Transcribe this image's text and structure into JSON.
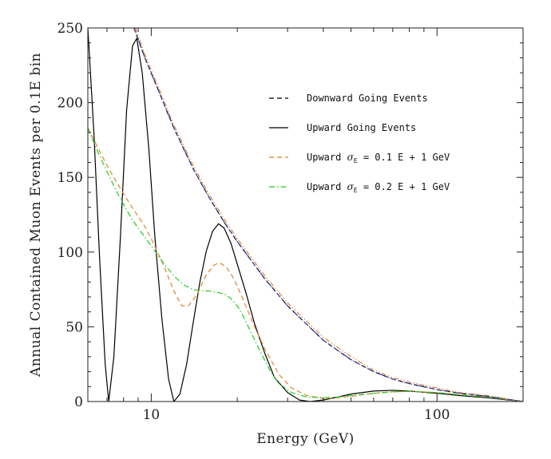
{
  "chart_data": {
    "type": "line",
    "xlabel": "Energy (GeV)",
    "ylabel": "Annual Contained Muon Events per 0.1E bin",
    "x_scale": "log",
    "xlim": [
      6,
      200
    ],
    "ylim": [
      0,
      250
    ],
    "x_ticks": [
      10,
      100
    ],
    "x_tick_labels": [
      "10",
      "100"
    ],
    "y_ticks": [
      0,
      50,
      100,
      150,
      200,
      250
    ],
    "y_tick_labels": [
      "0",
      "50",
      "100",
      "150",
      "200",
      "250"
    ],
    "grid": false,
    "legend_position": "top-right",
    "series": [
      {
        "name": "Downward Going Events",
        "style": "dashed",
        "color": "#000000",
        "x": [
          8.7,
          9.5,
          10.5,
          12,
          14,
          16,
          18,
          20,
          25,
          30,
          40,
          50,
          60,
          70,
          80,
          100,
          120,
          150,
          200
        ],
        "y": [
          250,
          230,
          210,
          183,
          156,
          136,
          120,
          107,
          82,
          64,
          41,
          28,
          20,
          15,
          12,
          8,
          5.5,
          3.5,
          0
        ]
      },
      {
        "name": "Upward Going Events",
        "style": "solid",
        "color": "#000000",
        "x": [
          6,
          6.3,
          6.6,
          6.9,
          7.1,
          7.4,
          7.8,
          8.2,
          8.6,
          8.9,
          9.3,
          9.8,
          10.3,
          10.9,
          11.5,
          12,
          12.6,
          13.3,
          14,
          14.8,
          15.6,
          16.4,
          17.2,
          18,
          19,
          20,
          21.5,
          23,
          25,
          27,
          30,
          33,
          36,
          40,
          45,
          50,
          60,
          70,
          80,
          90,
          100,
          120,
          150,
          200
        ],
        "y": [
          250,
          180,
          95,
          25,
          0,
          30,
          110,
          195,
          238,
          243,
          220,
          170,
          110,
          55,
          15,
          0,
          5,
          25,
          52,
          80,
          101,
          114,
          119,
          116,
          106,
          92,
          72,
          52,
          32,
          16,
          6,
          1,
          0,
          1,
          3,
          5,
          7,
          7.5,
          7,
          6.2,
          5.5,
          4,
          2.5,
          0
        ]
      },
      {
        "name": "Upward σE = 0.1 E + 1 GeV",
        "style": "dashed",
        "color": "#e0822a",
        "x": [
          6,
          6.5,
          7,
          7.5,
          8,
          8.5,
          9,
          9.5,
          10,
          11,
          12,
          12.8,
          13.5,
          14.5,
          15.5,
          16.5,
          17.3,
          18.3,
          19.5,
          21,
          23,
          25,
          28,
          31,
          35,
          40,
          45,
          50,
          60,
          70,
          80,
          100,
          120,
          150,
          200
        ],
        "y": [
          183,
          170,
          158,
          148,
          139,
          131,
          124,
          117,
          109,
          92,
          74,
          64,
          64,
          72,
          84,
          91,
          93,
          90,
          82,
          68,
          50,
          35,
          18,
          9,
          4,
          2,
          2.5,
          3.5,
          5.5,
          6.5,
          6.8,
          6,
          4.5,
          3,
          0
        ]
      },
      {
        "name": "Upward σE = 0.2 E + 1 GeV",
        "style": "dash-dot",
        "color": "#22cc22",
        "x": [
          6,
          6.5,
          7,
          7.5,
          8,
          8.5,
          9,
          9.5,
          10,
          11,
          12,
          13,
          14,
          15,
          16,
          17,
          18,
          19,
          20,
          21,
          22.5,
          24,
          26,
          28,
          31,
          35,
          40,
          45,
          50,
          60,
          70,
          80,
          100,
          120,
          150,
          200
        ],
        "y": [
          183,
          167,
          154,
          142,
          132,
          123,
          116,
          110,
          104,
          93,
          84,
          78,
          75,
          74,
          74,
          73,
          72,
          69,
          64,
          57,
          45,
          34,
          21,
          12,
          6,
          3,
          2.5,
          3,
          4,
          5.5,
          6.5,
          6.8,
          6,
          4.5,
          3,
          0
        ]
      },
      {
        "name": "",
        "style": "dash-dot-dot",
        "color": "#e0822a",
        "x": [
          8.8,
          9.5,
          10.5,
          12,
          14,
          16,
          18,
          20,
          25,
          30,
          40,
          50,
          60,
          70,
          80,
          100,
          120,
          150,
          200
        ],
        "y": [
          250,
          232,
          212,
          185,
          158,
          138,
          122,
          109,
          84,
          66,
          43,
          30,
          21,
          16,
          13,
          9,
          6,
          4,
          0
        ]
      },
      {
        "name": "",
        "style": "dash-dot-dot",
        "color": "#3344cc",
        "x": [
          8.7,
          9.5,
          10.5,
          12,
          14,
          16,
          18,
          20,
          25,
          30,
          40,
          50,
          60,
          70,
          80,
          100,
          120,
          150,
          200
        ],
        "y": [
          250,
          230,
          210,
          183,
          156,
          136,
          120,
          107,
          82,
          64,
          41,
          28,
          20,
          15,
          12,
          8,
          5.5,
          3.5,
          0
        ]
      }
    ],
    "legend": [
      {
        "label": "Downward Going Events",
        "style": "dashed",
        "color": "#000000"
      },
      {
        "label": "Upward Going Events",
        "style": "solid",
        "color": "#000000"
      },
      {
        "label": "Upward σE = 0.1 E + 1 GeV",
        "style": "dashed",
        "color": "#e0822a",
        "prefix": "Upward ",
        "sigma_sub": "E",
        "suffix": " = 0.1 E + 1 GeV"
      },
      {
        "label": "Upward σE = 0.2 E + 1 GeV",
        "style": "dash-dot",
        "color": "#22cc22",
        "prefix": "Upward ",
        "sigma_sub": "E",
        "suffix": " = 0.2 E + 1 GeV"
      }
    ]
  }
}
